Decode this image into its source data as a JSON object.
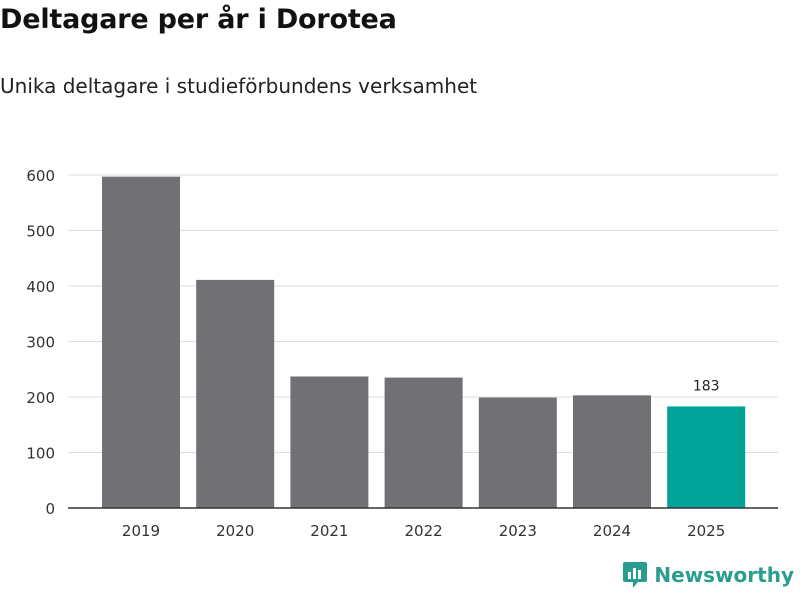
{
  "header": {
    "title": "Deltagare per år i Dorotea",
    "subtitle": "Unika deltagare i studieförbundens verksamhet"
  },
  "brand": {
    "name": "Newsworthy"
  },
  "chart_data": {
    "type": "bar",
    "categories": [
      "2019",
      "2020",
      "2021",
      "2022",
      "2023",
      "2024",
      "2025"
    ],
    "values": [
      597,
      411,
      237,
      235,
      199,
      203,
      183
    ],
    "highlight_index": 6,
    "data_labels": {
      "6": "183"
    },
    "yticks": [
      "0",
      "100",
      "200",
      "300",
      "400",
      "500",
      "600"
    ],
    "ylim": [
      0,
      600
    ],
    "grid": true,
    "colors": {
      "bar": "#707075",
      "highlight": "#00a397",
      "grid": "#dddddd",
      "axis": "#333333"
    }
  }
}
